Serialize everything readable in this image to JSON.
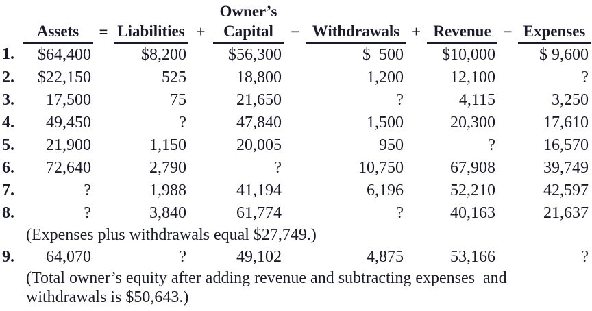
{
  "colors": {
    "text": "#1a1a2c",
    "background": "#ffffff"
  },
  "table": {
    "owners_label": "Owner’s",
    "columns": [
      {
        "label": "Assets"
      },
      {
        "label": "Liabilities"
      },
      {
        "label": "Capital"
      },
      {
        "label": "Withdrawals"
      },
      {
        "label": "Revenue"
      },
      {
        "label": "Expenses"
      }
    ],
    "operators": [
      "=",
      "+",
      "−",
      "+",
      "−"
    ],
    "rows": [
      {
        "num": "1.",
        "assets": "$64,400",
        "liabilities": "$8,200",
        "capital": "$56,300",
        "withdrawals": "$  500",
        "revenue": "$10,000",
        "expenses": "$ 9,600"
      },
      {
        "num": "2.",
        "assets": "$22,150",
        "liabilities": "525",
        "capital": "18,800",
        "withdrawals": "1,200",
        "revenue": "12,100",
        "expenses": "?"
      },
      {
        "num": "3.",
        "assets": "17,500",
        "liabilities": "75",
        "capital": "21,650",
        "withdrawals": "?",
        "revenue": "4,115",
        "expenses": "3,250"
      },
      {
        "num": "4.",
        "assets": "49,450",
        "liabilities": "?",
        "capital": "47,840",
        "withdrawals": "1,500",
        "revenue": "20,300",
        "expenses": "17,610"
      },
      {
        "num": "5.",
        "assets": "21,900",
        "liabilities": "1,150",
        "capital": "20,005",
        "withdrawals": "950",
        "revenue": "?",
        "expenses": "16,570"
      },
      {
        "num": "6.",
        "assets": "72,640",
        "liabilities": "2,790",
        "capital": "?",
        "withdrawals": "10,750",
        "revenue": "67,908",
        "expenses": "39,749"
      },
      {
        "num": "7.",
        "assets": "?",
        "liabilities": "1,988",
        "capital": "41,194",
        "withdrawals": "6,196",
        "revenue": "52,210",
        "expenses": "42,597"
      },
      {
        "num": "8.",
        "assets": "?",
        "liabilities": "3,840",
        "capital": "61,774",
        "withdrawals": "?",
        "revenue": "40,163",
        "expenses": "21,637"
      },
      {
        "num": "9.",
        "assets": "64,070",
        "liabilities": "?",
        "capital": "49,102",
        "withdrawals": "4,875",
        "revenue": "53,166",
        "expenses": "?"
      }
    ],
    "note_after_row8": "(Expenses plus withdrawals equal $27,749.)",
    "note_after_row9_line1": "(Total owner’s equity after adding revenue and subtracting expenses  and",
    "note_after_row9_line2": "withdrawals is $50,643.)"
  }
}
